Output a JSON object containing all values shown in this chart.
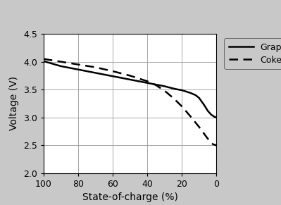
{
  "title": "",
  "xlabel": "State-of-charge (%)",
  "ylabel": "Voltage (V)",
  "ylim": [
    2,
    4.5
  ],
  "xlim": [
    0,
    100
  ],
  "yticks": [
    2,
    2.5,
    3,
    3.5,
    4,
    4.5
  ],
  "xticks": [
    0,
    20,
    40,
    60,
    80,
    100
  ],
  "background_color": "#c8c8c8",
  "plot_bg_color": "#ffffff",
  "grid_color": "#999999",
  "line_color": "#000000",
  "graphite_x": [
    100,
    90,
    80,
    70,
    60,
    50,
    40,
    35,
    30,
    25,
    22,
    20,
    18,
    15,
    12,
    10,
    7,
    5,
    3,
    1,
    0
  ],
  "graphite_y": [
    4.01,
    3.92,
    3.86,
    3.8,
    3.74,
    3.68,
    3.62,
    3.59,
    3.56,
    3.52,
    3.5,
    3.49,
    3.47,
    3.44,
    3.4,
    3.35,
    3.22,
    3.12,
    3.05,
    3.01,
    3.0
  ],
  "coke_x": [
    100,
    90,
    80,
    70,
    60,
    50,
    40,
    35,
    30,
    25,
    20,
    15,
    10,
    5,
    2,
    0
  ],
  "coke_y": [
    4.05,
    4.0,
    3.95,
    3.9,
    3.83,
    3.75,
    3.65,
    3.58,
    3.48,
    3.35,
    3.2,
    3.02,
    2.83,
    2.62,
    2.52,
    2.5
  ],
  "legend_graphite": "Graphite",
  "legend_coke": "Coke",
  "linewidth": 1.8,
  "legend_fontsize": 9,
  "tick_fontsize": 9,
  "label_fontsize": 10
}
